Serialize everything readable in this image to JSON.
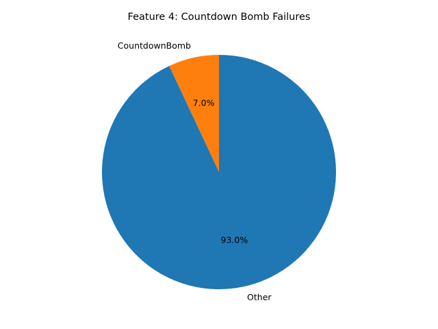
{
  "chart_data": {
    "type": "pie",
    "title": "Feature 4: Countdown Bomb Failures",
    "categories": [
      "CountdownBomb",
      "Other"
    ],
    "values": [
      7.0,
      93.0
    ],
    "percent_labels": [
      "7.0%",
      "93.0%"
    ],
    "colors": [
      "#ff7f0e",
      "#1f77b4"
    ],
    "start_angle_deg": 90,
    "direction": "counterclockwise",
    "legend": "none"
  }
}
